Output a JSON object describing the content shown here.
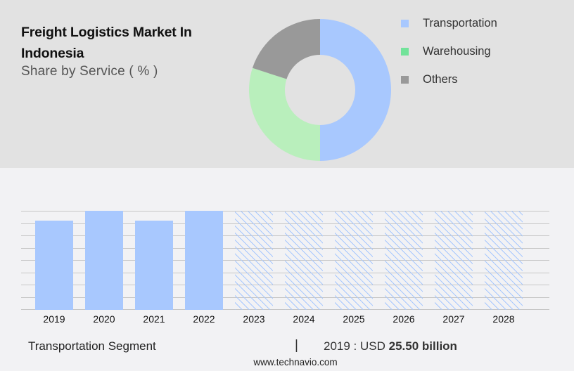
{
  "header": {
    "title": "Freight Logistics Market In Indonesia",
    "subtitle": "Share by Service ( % )"
  },
  "legend": {
    "items": [
      {
        "label": "Transportation",
        "color": "#a8c8fe"
      },
      {
        "label": "Warehousing",
        "color": "#72e39a"
      },
      {
        "label": "Others",
        "color": "#999999"
      }
    ]
  },
  "footer": {
    "segment_label": "Transportation Segment",
    "separator": "|",
    "value_prefix": "2019 : USD",
    "value_bold": "25.50 billion",
    "website": "www.technavio.com"
  },
  "chart_data": [
    {
      "type": "pie",
      "title": "Share by Service ( % )",
      "variant": "donut",
      "categories": [
        "Transportation",
        "Warehousing",
        "Others"
      ],
      "values": [
        50,
        30,
        20
      ],
      "values_note": "estimated from slice geometry; no labels shown",
      "colors": [
        "#a8c8fe",
        "#b9efbc",
        "#999999"
      ],
      "legend_position": "right"
    },
    {
      "type": "bar",
      "title": "Transportation Segment",
      "categories": [
        "2019",
        "2020",
        "2021",
        "2022",
        "2023",
        "2024",
        "2025",
        "2026",
        "2027",
        "2028"
      ],
      "values": [
        25.5,
        28.3,
        25.5,
        28.3,
        28.3,
        28.3,
        28.3,
        28.3,
        28.3,
        28.3
      ],
      "forecast_from": "2023",
      "annotation": "2019 : USD 25.50 billion",
      "ylabel": "",
      "xlabel": "",
      "grid": true,
      "bar_color": "#a8c8fe"
    }
  ]
}
